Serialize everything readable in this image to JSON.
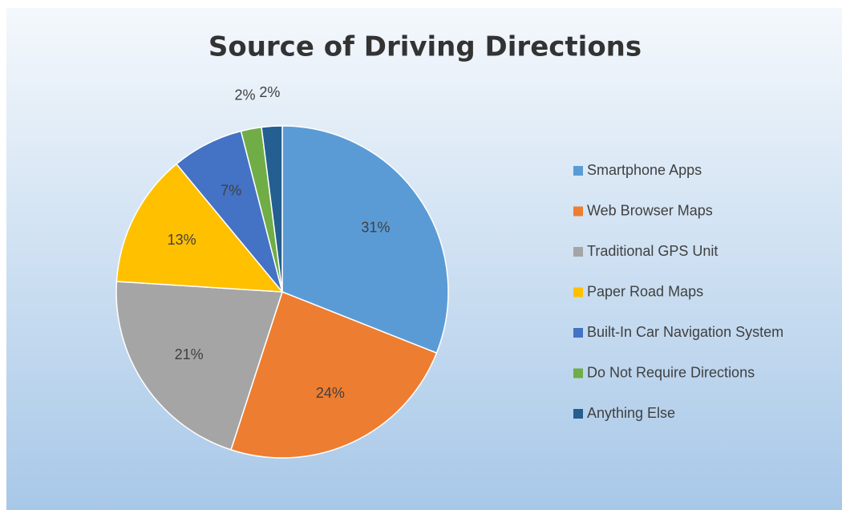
{
  "chart_data": {
    "type": "pie",
    "title": "Source of Driving Directions",
    "categories": [
      "Smartphone Apps",
      "Web Browser Maps",
      "Traditional GPS Unit",
      "Paper Road Maps",
      "Built-In Car Navigation System",
      "Do Not Require Directions",
      "Anything Else"
    ],
    "values": [
      31,
      24,
      21,
      13,
      7,
      2,
      2
    ],
    "value_labels": [
      "31%",
      "24%",
      "21%",
      "13%",
      "7%",
      "2%",
      "2%"
    ],
    "colors": [
      "#5b9bd5",
      "#ed7d31",
      "#a5a5a5",
      "#ffc000",
      "#4472c4",
      "#70ad47",
      "#255e91"
    ],
    "legend": "right"
  }
}
